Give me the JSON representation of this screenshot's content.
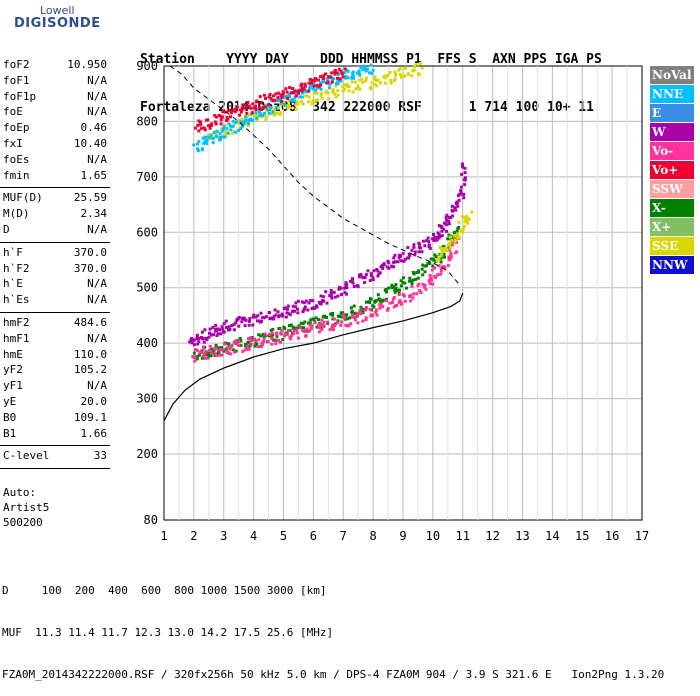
{
  "logo": {
    "line1": "Lowell",
    "line2": "DIGISONDE"
  },
  "header": {
    "labels": "Station    YYYY DAY    DDD HHMMSS P1  FFS S  AXN PPS IGA PS",
    "values": "Fortaleza 2014 Dez08  342 222000 RSF      1 714 100 10+ 11"
  },
  "params": {
    "group1": [
      {
        "k": "foF2",
        "v": "10.950"
      },
      {
        "k": "foF1",
        "v": "N/A"
      },
      {
        "k": "foF1p",
        "v": "N/A"
      },
      {
        "k": "foE",
        "v": "N/A"
      },
      {
        "k": "foEp",
        "v": "0.46"
      },
      {
        "k": "fxI",
        "v": "10.40"
      },
      {
        "k": "foEs",
        "v": "N/A"
      },
      {
        "k": "fmin",
        "v": "1.65"
      }
    ],
    "group2": [
      {
        "k": "MUF(D)",
        "v": "25.59"
      },
      {
        "k": "M(D)",
        "v": "2.34"
      },
      {
        "k": "D",
        "v": "N/A"
      }
    ],
    "group3": [
      {
        "k": "h`F",
        "v": "370.0"
      },
      {
        "k": "h`F2",
        "v": "370.0"
      },
      {
        "k": "h`E",
        "v": "N/A"
      },
      {
        "k": "h`Es",
        "v": "N/A"
      }
    ],
    "group4": [
      {
        "k": "hmF2",
        "v": "484.6"
      },
      {
        "k": "hmF1",
        "v": "N/A"
      },
      {
        "k": "hmE",
        "v": "110.0"
      },
      {
        "k": "yF2",
        "v": "105.2"
      },
      {
        "k": "yF1",
        "v": "N/A"
      },
      {
        "k": "yE",
        "v": "20.0"
      },
      {
        "k": "B0",
        "v": "109.1"
      },
      {
        "k": "B1",
        "v": "1.66"
      }
    ],
    "group5": [
      {
        "k": "C-level",
        "v": "33"
      }
    ]
  },
  "auto": {
    "l1": "Auto:",
    "l2": "Artist5",
    "l3": "500200"
  },
  "legend": [
    {
      "label": "NoVal",
      "color": "#808080"
    },
    {
      "label": "NNE",
      "color": "#00bfff"
    },
    {
      "label": "E",
      "color": "#3a8ee6"
    },
    {
      "label": "W",
      "color": "#aa00aa"
    },
    {
      "label": "Vo-",
      "color": "#ff3399"
    },
    {
      "label": "Vo+",
      "color": "#ee0033"
    },
    {
      "label": "SSW",
      "color": "#ff9f9f"
    },
    {
      "label": "X-",
      "color": "#008000"
    },
    {
      "label": "X+",
      "color": "#80c060"
    },
    {
      "label": "SSE",
      "color": "#d8d800"
    },
    {
      "label": "NNW",
      "color": "#1010cc"
    }
  ],
  "chart_data": {
    "type": "scatter",
    "xticks": [
      "1",
      "2",
      "3",
      "4",
      "5",
      "6",
      "7",
      "8",
      "9",
      "10",
      "11",
      "12",
      "13",
      "14",
      "15",
      "16",
      "17"
    ],
    "yticks": [
      "80",
      "200",
      "300",
      "400",
      "500",
      "600",
      "700",
      "800",
      "900"
    ],
    "xlim": [
      1,
      17
    ],
    "grid": true,
    "profile": {
      "x": [
        0.95,
        1.3,
        1.7,
        2.2,
        3,
        4,
        5,
        6,
        7,
        8,
        9,
        10,
        10.6,
        10.9,
        11.0
      ],
      "y": [
        260,
        290,
        315,
        335,
        355,
        375,
        390,
        400,
        415,
        428,
        440,
        455,
        466,
        476,
        490
      ]
    },
    "model_curve": {
      "x": [
        1.2,
        1.6,
        2,
        2.5,
        3,
        3.5,
        4,
        4.5,
        5,
        5.5,
        6,
        6.5,
        7,
        7.5,
        8,
        8.5,
        9,
        9.5,
        10,
        10.5,
        10.9
      ],
      "y": [
        900,
        885,
        860,
        840,
        820,
        800,
        775,
        750,
        720,
        690,
        665,
        645,
        625,
        610,
        595,
        580,
        568,
        556,
        545,
        530,
        505
      ]
    },
    "series": [
      {
        "name": "W",
        "color": "#aa00aa",
        "x": [
          1.8,
          2.2,
          2.6,
          3,
          3.5,
          4,
          4.5,
          5,
          5.5,
          6,
          6.5,
          7,
          7.5,
          8,
          8.5,
          9,
          9.5,
          10,
          10.3,
          10.6,
          10.9,
          11
        ],
        "y": [
          400,
          412,
          422,
          432,
          440,
          447,
          452,
          460,
          468,
          475,
          487,
          500,
          515,
          528,
          545,
          560,
          575,
          590,
          610,
          635,
          670,
          730
        ]
      },
      {
        "name": "X-",
        "color": "#008000",
        "x": [
          2,
          2.5,
          3,
          3.5,
          4,
          4.5,
          5,
          5.5,
          6,
          6.5,
          7,
          7.5,
          8,
          8.5,
          9,
          9.5,
          10,
          10.4,
          10.8
        ],
        "y": [
          383,
          388,
          393,
          400,
          408,
          415,
          422,
          430,
          438,
          445,
          452,
          465,
          478,
          495,
          510,
          528,
          550,
          575,
          610
        ]
      },
      {
        "name": "Vo-",
        "color": "#ff3399",
        "x": [
          1.9,
          2.4,
          3,
          3.6,
          4.2,
          4.8,
          5.4,
          6,
          6.6,
          7.2,
          7.8,
          8.4,
          9,
          9.6,
          10.1,
          10.5,
          10.8
        ],
        "y": [
          380,
          386,
          392,
          399,
          407,
          414,
          422,
          430,
          438,
          447,
          457,
          470,
          485,
          505,
          530,
          560,
          590
        ]
      },
      {
        "name": "SSE",
        "color": "#d8d800",
        "x": [
          2.4,
          3,
          3.6,
          4.2,
          4.8,
          5.4,
          6,
          6.6,
          7.2,
          7.8,
          8.4,
          9,
          9.6,
          10.1,
          10.5,
          10.9,
          11.2
        ],
        "y": [
          770,
          785,
          800,
          815,
          825,
          835,
          845,
          855,
          865,
          872,
          880,
          890,
          900,
          560,
          580,
          610,
          640
        ]
      },
      {
        "name": "NNE",
        "color": "#00bfff",
        "x": [
          2,
          2.5,
          3,
          3.5,
          4,
          4.5,
          5,
          5.5,
          6,
          6.5,
          7,
          7.5,
          8
        ],
        "y": [
          755,
          770,
          785,
          800,
          815,
          828,
          840,
          852,
          865,
          875,
          885,
          893,
          900
        ]
      },
      {
        "name": "Vo+",
        "color": "#ee0033",
        "x": [
          2,
          2.5,
          3,
          3.5,
          4,
          4.5,
          5,
          5.5,
          6,
          6.5,
          7
        ],
        "y": [
          790,
          800,
          812,
          822,
          832,
          842,
          852,
          862,
          872,
          882,
          892
        ]
      }
    ]
  },
  "footer": {
    "l1": "D     100  200  400  600  800 1000 1500 3000 [km]",
    "l2": "MUF  11.3 11.4 11.7 12.3 13.0 14.2 17.5 25.6 [MHz]",
    "l3": "FZA0M_2014342222000.RSF / 320fx256h 50 kHz 5.0 km / DPS-4 FZA0M 904 / 3.9 S 321.6 E   Ion2Png 1.3.20"
  }
}
